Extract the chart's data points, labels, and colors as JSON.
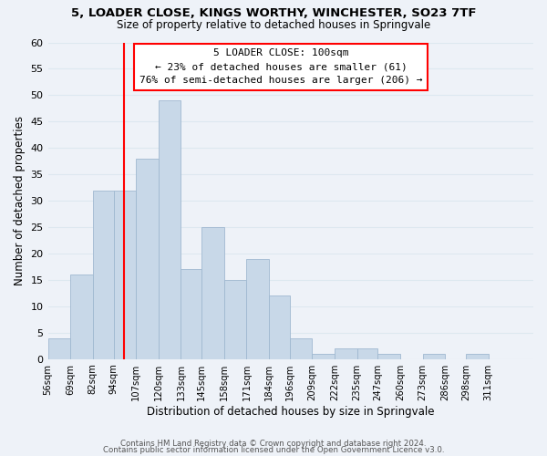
{
  "title": "5, LOADER CLOSE, KINGS WORTHY, WINCHESTER, SO23 7TF",
  "subtitle": "Size of property relative to detached houses in Springvale",
  "xlabel": "Distribution of detached houses by size in Springvale",
  "ylabel": "Number of detached properties",
  "footer_line1": "Contains HM Land Registry data © Crown copyright and database right 2024.",
  "footer_line2": "Contains public sector information licensed under the Open Government Licence v3.0.",
  "bin_labels": [
    "56sqm",
    "69sqm",
    "82sqm",
    "94sqm",
    "107sqm",
    "120sqm",
    "133sqm",
    "145sqm",
    "158sqm",
    "171sqm",
    "184sqm",
    "196sqm",
    "209sqm",
    "222sqm",
    "235sqm",
    "247sqm",
    "260sqm",
    "273sqm",
    "286sqm",
    "298sqm",
    "311sqm"
  ],
  "bin_edges": [
    56,
    69,
    82,
    94,
    107,
    120,
    133,
    145,
    158,
    171,
    184,
    196,
    209,
    222,
    235,
    247,
    260,
    273,
    286,
    298,
    311,
    324
  ],
  "bar_values": [
    4,
    16,
    32,
    32,
    38,
    49,
    17,
    25,
    15,
    19,
    12,
    4,
    1,
    2,
    2,
    1,
    0,
    1,
    0,
    1,
    0
  ],
  "bar_color": "#c8d8e8",
  "bar_edgecolor": "#a0b8d0",
  "ylim": [
    0,
    60
  ],
  "yticks": [
    0,
    5,
    10,
    15,
    20,
    25,
    30,
    35,
    40,
    45,
    50,
    55,
    60
  ],
  "marker_label_title": "5 LOADER CLOSE: 100sqm",
  "marker_label_line2": "← 23% of detached houses are smaller (61)",
  "marker_label_line3": "76% of semi-detached houses are larger (206) →",
  "red_line_x": 100,
  "grid_color": "#dde8f0",
  "background_color": "#eef2f8"
}
